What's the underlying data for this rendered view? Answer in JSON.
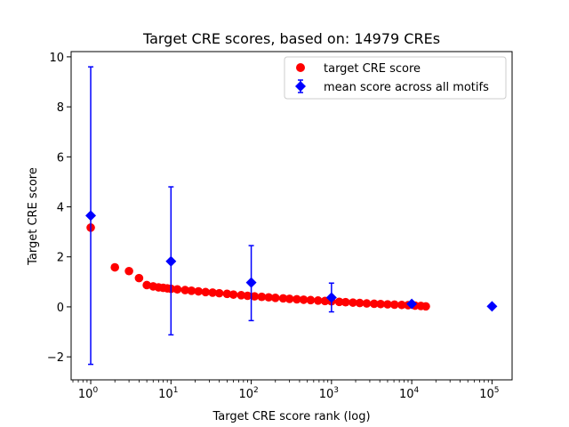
{
  "chart_data": {
    "type": "scatter",
    "title": "Target CRE scores, based on: 14979 CREs",
    "xlabel": "Target CRE score rank (log)",
    "ylabel": "Target CRE score",
    "xscale": "log",
    "xlim": [
      0.57,
      178000
    ],
    "ylim": [
      -2.92,
      10.21
    ],
    "xticks": [
      1,
      10,
      100,
      1000,
      10000,
      100000
    ],
    "xticklabels": [
      {
        "base": "10",
        "exp": "0"
      },
      {
        "base": "10",
        "exp": "1"
      },
      {
        "base": "10",
        "exp": "2"
      },
      {
        "base": "10",
        "exp": "3"
      },
      {
        "base": "10",
        "exp": "4"
      },
      {
        "base": "10",
        "exp": "5"
      }
    ],
    "yticks": [
      -2,
      0,
      2,
      4,
      6,
      8,
      10
    ],
    "yticklabels": [
      "−2",
      "0",
      "2",
      "4",
      "6",
      "8",
      "10"
    ],
    "grid": false,
    "legend": {
      "placement": "top-right",
      "entries": [
        "target CRE score",
        "mean score across all motifs"
      ]
    },
    "series": [
      {
        "name": "target CRE score",
        "color": "#ff0000",
        "marker": "circle",
        "x": [
          1,
          2,
          3,
          4,
          5,
          6,
          7,
          8,
          9,
          10,
          12,
          15,
          18,
          22,
          27,
          33,
          40,
          50,
          60,
          75,
          90,
          110,
          135,
          165,
          200,
          250,
          300,
          370,
          450,
          550,
          680,
          830,
          1000,
          1250,
          1500,
          1850,
          2250,
          2750,
          3400,
          4100,
          5000,
          6100,
          7500,
          9000,
          11000,
          13000,
          14979
        ],
        "y": [
          3.17,
          1.58,
          1.43,
          1.15,
          0.87,
          0.82,
          0.78,
          0.76,
          0.74,
          0.72,
          0.7,
          0.67,
          0.645,
          0.62,
          0.59,
          0.57,
          0.545,
          0.52,
          0.49,
          0.466,
          0.443,
          0.42,
          0.4,
          0.38,
          0.36,
          0.34,
          0.32,
          0.303,
          0.286,
          0.27,
          0.252,
          0.235,
          0.22,
          0.2,
          0.187,
          0.17,
          0.154,
          0.137,
          0.123,
          0.112,
          0.1,
          0.089,
          0.077,
          0.066,
          0.05,
          0.035,
          0.02
        ]
      },
      {
        "name": "mean score across all motifs",
        "color": "#0000ff",
        "marker": "diamond",
        "x": [
          1,
          10,
          100,
          1000,
          10000,
          100000
        ],
        "y": [
          3.65,
          1.82,
          0.97,
          0.37,
          0.12,
          0.02
        ],
        "err_low": [
          -2.3,
          -1.12,
          -0.55,
          -0.2,
          0.12,
          0.02
        ],
        "err_high": [
          9.6,
          4.8,
          2.45,
          0.95,
          0.12,
          0.02
        ]
      }
    ]
  }
}
